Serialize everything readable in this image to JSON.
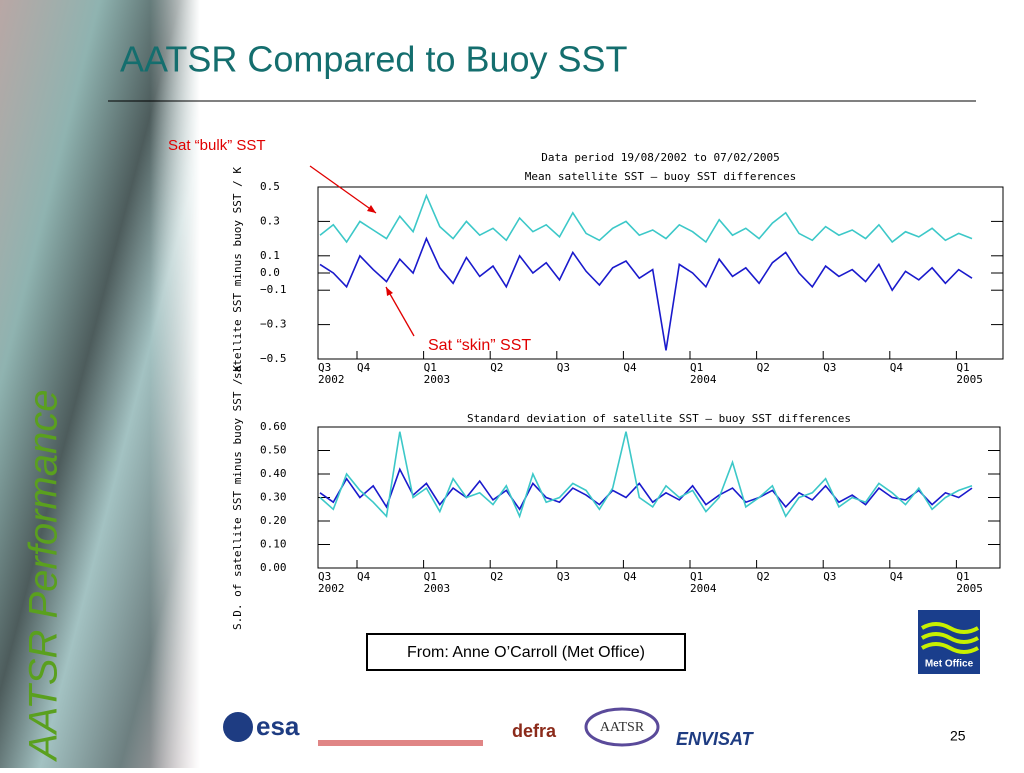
{
  "slide": {
    "title": "AATSR Compared to Buoy SST",
    "side_title": "AATSR Performance",
    "source": "From: Anne O’Carroll (Met Office)",
    "page_number": "25",
    "logos": {
      "esa": "esa",
      "defra": "defra",
      "aatsr": "AATSR",
      "envisat": "ENVISAT",
      "met_office": "Met Office"
    }
  },
  "chart_data": [
    {
      "type": "line",
      "title": "Data period 19/08/2002 to 07/02/2005",
      "subtitle": "Mean satellite SST – buoy SST differences",
      "y_label": "satellite SST minus buoy SST / K",
      "quarters": [
        "Q3",
        "Q4",
        "Q1",
        "Q2",
        "Q3",
        "Q4",
        "Q1",
        "Q2",
        "Q3",
        "Q4",
        "Q1"
      ],
      "years": [
        "2002",
        null,
        "2003",
        null,
        null,
        null,
        "2004",
        null,
        null,
        null,
        "2005"
      ],
      "ylim": [
        -0.5,
        0.5
      ],
      "yticks": [
        {
          "value": -0.5,
          "label": "−0.5"
        },
        {
          "value": -0.3,
          "label": "−0.3"
        },
        {
          "value": -0.1,
          "label": "−0.1"
        },
        {
          "value": 0,
          "label": "0.0"
        },
        0.1,
        0.3,
        0.5
      ],
      "annotations": [
        "Sat “bulk” SST",
        "Sat “skin” SST"
      ],
      "series": [
        {
          "color": "#3cc8c8",
          "values": [
            0.22,
            0.28,
            0.18,
            0.3,
            0.25,
            0.2,
            0.33,
            0.24,
            0.45,
            0.27,
            0.2,
            0.3,
            0.22,
            0.26,
            0.19,
            0.32,
            0.24,
            0.28,
            0.21,
            0.35,
            0.23,
            0.19,
            0.26,
            0.3,
            0.22,
            0.25,
            0.2,
            0.28,
            0.24,
            0.18,
            0.31,
            0.22,
            0.26,
            0.2,
            0.29,
            0.35,
            0.23,
            0.19,
            0.27,
            0.22,
            0.25,
            0.2,
            0.28,
            0.18,
            0.24,
            0.21,
            0.26,
            0.19,
            0.23,
            0.2
          ]
        },
        {
          "color": "#1a1acc",
          "values": [
            0.05,
            0.0,
            -0.08,
            0.1,
            0.02,
            -0.05,
            0.08,
            0.0,
            0.2,
            0.03,
            -0.06,
            0.09,
            -0.02,
            0.04,
            -0.08,
            0.1,
            0.0,
            0.06,
            -0.04,
            0.12,
            0.01,
            -0.07,
            0.03,
            0.07,
            -0.03,
            0.02,
            -0.45,
            0.05,
            0.0,
            -0.08,
            0.08,
            -0.02,
            0.03,
            -0.06,
            0.06,
            0.12,
            0.0,
            -0.08,
            0.04,
            -0.02,
            0.02,
            -0.05,
            0.05,
            -0.1,
            0.01,
            -0.04,
            0.03,
            -0.06,
            0.02,
            -0.03
          ]
        }
      ]
    },
    {
      "type": "line",
      "title": "Standard deviation of satellite SST – buoy SST differences",
      "y_label": "S.D. of satellite SST minus buoy SST / K",
      "quarters": [
        "Q3",
        "Q4",
        "Q1",
        "Q2",
        "Q3",
        "Q4",
        "Q1",
        "Q2",
        "Q3",
        "Q4",
        "Q1"
      ],
      "years": [
        "2002",
        null,
        "2003",
        null,
        null,
        null,
        "2004",
        null,
        null,
        null,
        "2005"
      ],
      "ylim": [
        0,
        0.6
      ],
      "yticks": [
        {
          "value": 0,
          "label": "0.00"
        },
        {
          "value": 0.1,
          "label": "0.10"
        },
        {
          "value": 0.2,
          "label": "0.20"
        },
        {
          "value": 0.3,
          "label": "0.30"
        },
        {
          "value": 0.4,
          "label": "0.40"
        },
        {
          "value": 0.5,
          "label": "0.50"
        },
        {
          "value": 0.6,
          "label": "0.60"
        }
      ],
      "series": [
        {
          "color": "#1a1acc",
          "values": [
            0.32,
            0.28,
            0.38,
            0.3,
            0.35,
            0.26,
            0.42,
            0.31,
            0.36,
            0.27,
            0.34,
            0.3,
            0.37,
            0.29,
            0.33,
            0.25,
            0.36,
            0.3,
            0.28,
            0.34,
            0.31,
            0.27,
            0.33,
            0.3,
            0.36,
            0.28,
            0.32,
            0.29,
            0.35,
            0.27,
            0.31,
            0.34,
            0.28,
            0.3,
            0.33,
            0.26,
            0.32,
            0.29,
            0.35,
            0.28,
            0.31,
            0.27,
            0.34,
            0.3,
            0.29,
            0.33,
            0.27,
            0.32,
            0.3,
            0.34
          ]
        },
        {
          "color": "#3cc8c8",
          "values": [
            0.3,
            0.25,
            0.4,
            0.33,
            0.28,
            0.22,
            0.58,
            0.3,
            0.34,
            0.24,
            0.38,
            0.3,
            0.32,
            0.27,
            0.35,
            0.22,
            0.4,
            0.28,
            0.3,
            0.36,
            0.33,
            0.25,
            0.34,
            0.58,
            0.3,
            0.26,
            0.35,
            0.3,
            0.33,
            0.24,
            0.3,
            0.45,
            0.26,
            0.3,
            0.35,
            0.22,
            0.3,
            0.32,
            0.38,
            0.26,
            0.3,
            0.28,
            0.36,
            0.32,
            0.27,
            0.34,
            0.25,
            0.3,
            0.33,
            0.35
          ]
        }
      ]
    }
  ]
}
